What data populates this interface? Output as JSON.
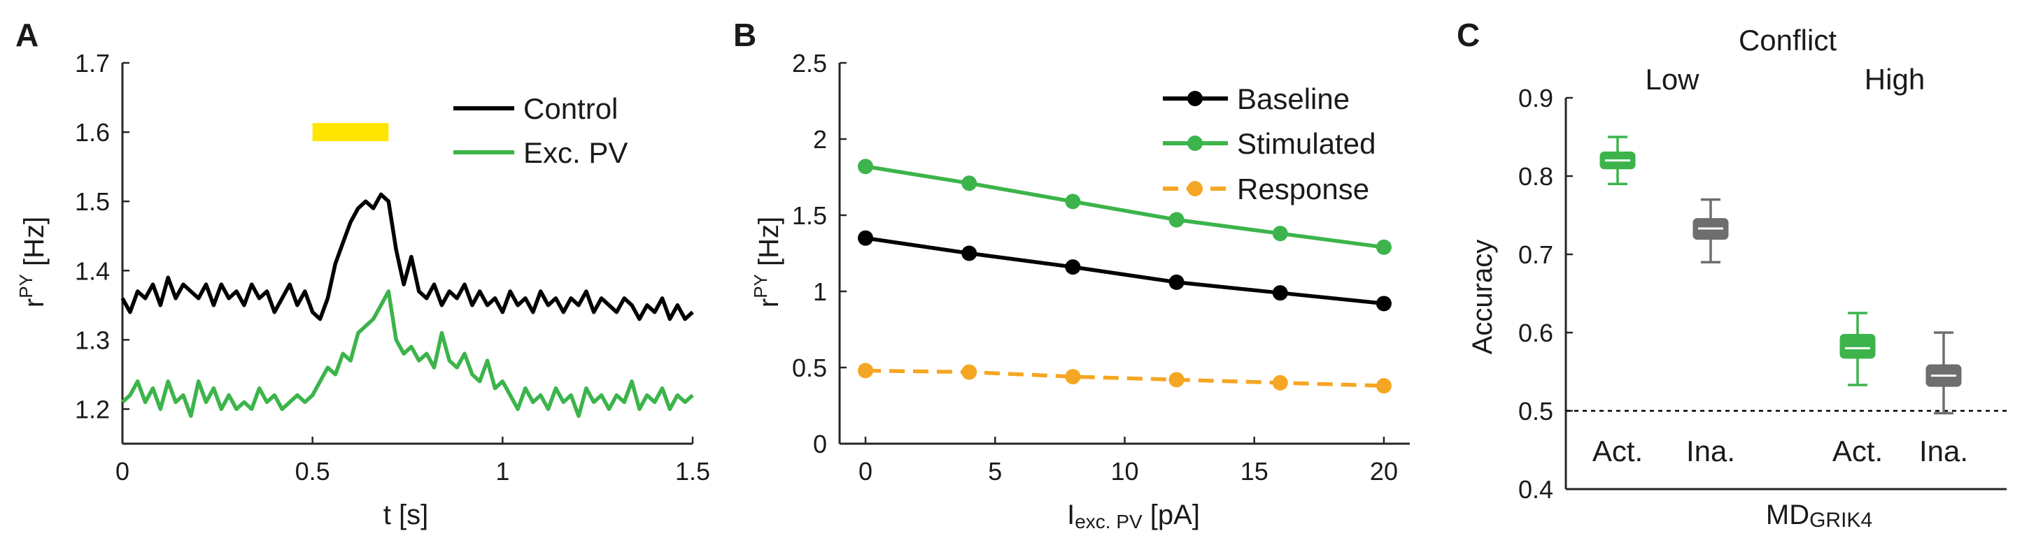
{
  "colors": {
    "axis": "#262626",
    "control": "#000000",
    "exc_pv": "#3cb44b",
    "baseline": "#000000",
    "stimulated": "#3cb44b",
    "response": "#f5a623",
    "stim_bar": "#ffe600",
    "gray": "#6e6e6e"
  },
  "chart_data": [
    {
      "panel": "A",
      "type": "line",
      "xlabel": "t [s]",
      "ylabel_main": "r",
      "ylabel_sup": "PY",
      "ylabel_unit": " [Hz]",
      "xlim": [
        0,
        1.5
      ],
      "ylim": [
        1.15,
        1.7
      ],
      "xticks": [
        0,
        0.5,
        1,
        1.5
      ],
      "xtick_labels": [
        "0",
        "0.5",
        "1",
        "1.5"
      ],
      "yticks": [
        1.2,
        1.3,
        1.4,
        1.5,
        1.6,
        1.7
      ],
      "ytick_labels": [
        "1.2",
        "1.3",
        "1.4",
        "1.5",
        "1.6",
        "1.7"
      ],
      "stimulus": {
        "start": 0.5,
        "end": 0.7,
        "level": 1.6
      },
      "legend": [
        "Control",
        "Exc. PV"
      ],
      "series": [
        {
          "name": "Control",
          "x": [
            0,
            0.02,
            0.04,
            0.06,
            0.08,
            0.1,
            0.12,
            0.14,
            0.16,
            0.18,
            0.2,
            0.22,
            0.24,
            0.26,
            0.28,
            0.3,
            0.32,
            0.34,
            0.36,
            0.38,
            0.4,
            0.42,
            0.44,
            0.46,
            0.48,
            0.5,
            0.52,
            0.54,
            0.56,
            0.58,
            0.6,
            0.62,
            0.64,
            0.66,
            0.68,
            0.7,
            0.72,
            0.74,
            0.76,
            0.78,
            0.8,
            0.82,
            0.84,
            0.86,
            0.88,
            0.9,
            0.92,
            0.94,
            0.96,
            0.98,
            1.0,
            1.02,
            1.04,
            1.06,
            1.08,
            1.1,
            1.12,
            1.14,
            1.16,
            1.18,
            1.2,
            1.22,
            1.24,
            1.26,
            1.28,
            1.3,
            1.32,
            1.34,
            1.36,
            1.38,
            1.4,
            1.42,
            1.44,
            1.46,
            1.48,
            1.5
          ],
          "y": [
            1.36,
            1.34,
            1.37,
            1.36,
            1.38,
            1.35,
            1.39,
            1.36,
            1.38,
            1.37,
            1.36,
            1.38,
            1.35,
            1.38,
            1.36,
            1.37,
            1.35,
            1.38,
            1.36,
            1.37,
            1.34,
            1.36,
            1.38,
            1.35,
            1.37,
            1.34,
            1.33,
            1.36,
            1.41,
            1.44,
            1.47,
            1.49,
            1.5,
            1.49,
            1.51,
            1.5,
            1.43,
            1.38,
            1.42,
            1.37,
            1.36,
            1.38,
            1.35,
            1.37,
            1.36,
            1.38,
            1.35,
            1.37,
            1.35,
            1.36,
            1.34,
            1.37,
            1.35,
            1.36,
            1.34,
            1.37,
            1.35,
            1.36,
            1.34,
            1.36,
            1.35,
            1.37,
            1.34,
            1.36,
            1.35,
            1.34,
            1.36,
            1.35,
            1.33,
            1.35,
            1.34,
            1.36,
            1.33,
            1.35,
            1.33,
            1.34
          ]
        },
        {
          "name": "Exc. PV",
          "x": [
            0,
            0.02,
            0.04,
            0.06,
            0.08,
            0.1,
            0.12,
            0.14,
            0.16,
            0.18,
            0.2,
            0.22,
            0.24,
            0.26,
            0.28,
            0.3,
            0.32,
            0.34,
            0.36,
            0.38,
            0.4,
            0.42,
            0.44,
            0.46,
            0.48,
            0.5,
            0.52,
            0.54,
            0.56,
            0.58,
            0.6,
            0.62,
            0.64,
            0.66,
            0.68,
            0.7,
            0.72,
            0.74,
            0.76,
            0.78,
            0.8,
            0.82,
            0.84,
            0.86,
            0.88,
            0.9,
            0.92,
            0.94,
            0.96,
            0.98,
            1.0,
            1.02,
            1.04,
            1.06,
            1.08,
            1.1,
            1.12,
            1.14,
            1.16,
            1.18,
            1.2,
            1.22,
            1.24,
            1.26,
            1.28,
            1.3,
            1.32,
            1.34,
            1.36,
            1.38,
            1.4,
            1.42,
            1.44,
            1.46,
            1.48,
            1.5
          ],
          "y": [
            1.21,
            1.22,
            1.24,
            1.21,
            1.23,
            1.2,
            1.24,
            1.21,
            1.22,
            1.19,
            1.24,
            1.21,
            1.23,
            1.2,
            1.22,
            1.2,
            1.21,
            1.2,
            1.23,
            1.21,
            1.22,
            1.2,
            1.21,
            1.22,
            1.21,
            1.22,
            1.24,
            1.26,
            1.25,
            1.28,
            1.27,
            1.31,
            1.32,
            1.33,
            1.35,
            1.37,
            1.3,
            1.28,
            1.29,
            1.27,
            1.28,
            1.26,
            1.31,
            1.27,
            1.26,
            1.28,
            1.25,
            1.24,
            1.27,
            1.23,
            1.24,
            1.22,
            1.2,
            1.23,
            1.21,
            1.22,
            1.2,
            1.23,
            1.21,
            1.22,
            1.19,
            1.23,
            1.21,
            1.22,
            1.2,
            1.22,
            1.21,
            1.24,
            1.2,
            1.22,
            1.21,
            1.23,
            1.2,
            1.22,
            1.21,
            1.22
          ]
        }
      ]
    },
    {
      "panel": "B",
      "type": "line",
      "xlabel_main": "I",
      "xlabel_sub": "exc. PV",
      "xlabel_unit": " [pA]",
      "ylabel_main": "r",
      "ylabel_sup": "PY",
      "ylabel_unit": " [Hz]",
      "xlim": [
        -1,
        21
      ],
      "ylim": [
        0,
        2.5
      ],
      "xticks": [
        0,
        5,
        10,
        15,
        20
      ],
      "xtick_labels": [
        "0",
        "5",
        "10",
        "15",
        "20"
      ],
      "yticks": [
        0,
        0.5,
        1,
        1.5,
        2,
        2.5
      ],
      "ytick_labels": [
        "0",
        "0.5",
        "1",
        "1.5",
        "2",
        "2.5"
      ],
      "legend": [
        "Baseline",
        "Stimulated",
        "Response"
      ],
      "x": [
        0,
        4,
        8,
        12,
        16,
        20
      ],
      "series": [
        {
          "name": "Baseline",
          "values": [
            1.35,
            1.25,
            1.16,
            1.06,
            0.99,
            0.92
          ],
          "style": "solid"
        },
        {
          "name": "Stimulated",
          "values": [
            1.82,
            1.71,
            1.59,
            1.47,
            1.38,
            1.29
          ],
          "style": "solid"
        },
        {
          "name": "Response",
          "values": [
            0.48,
            0.47,
            0.44,
            0.42,
            0.4,
            0.38
          ],
          "style": "dashed"
        }
      ]
    },
    {
      "panel": "C",
      "type": "box",
      "ylabel": "Accuracy",
      "xlabel_main": "MD",
      "xlabel_sub": "GRIK4",
      "ylim": [
        0.4,
        0.9
      ],
      "yticks": [
        0.4,
        0.5,
        0.6,
        0.7,
        0.8,
        0.9
      ],
      "ytick_labels": [
        "0.4",
        "0.5",
        "0.6",
        "0.7",
        "0.8",
        "0.9"
      ],
      "chance_level": 0.5,
      "group_title": "Conflict",
      "groups": [
        "Low",
        "High"
      ],
      "boxes": [
        {
          "group": "Low",
          "label": "Act.",
          "color": "green",
          "whisker_low": 0.79,
          "q1": 0.81,
          "median": 0.82,
          "q3": 0.83,
          "whisker_high": 0.85
        },
        {
          "group": "Low",
          "label": "Ina.",
          "color": "gray",
          "whisker_low": 0.69,
          "q1": 0.72,
          "median": 0.733,
          "q3": 0.745,
          "whisker_high": 0.77
        },
        {
          "group": "High",
          "label": "Act.",
          "color": "green",
          "whisker_low": 0.533,
          "q1": 0.568,
          "median": 0.58,
          "q3": 0.597,
          "whisker_high": 0.625
        },
        {
          "group": "High",
          "label": "Ina.",
          "color": "gray",
          "whisker_low": 0.497,
          "q1": 0.532,
          "median": 0.545,
          "q3": 0.558,
          "whisker_high": 0.6
        }
      ]
    }
  ],
  "panels": {
    "a": "A",
    "b": "B",
    "c": "C"
  }
}
